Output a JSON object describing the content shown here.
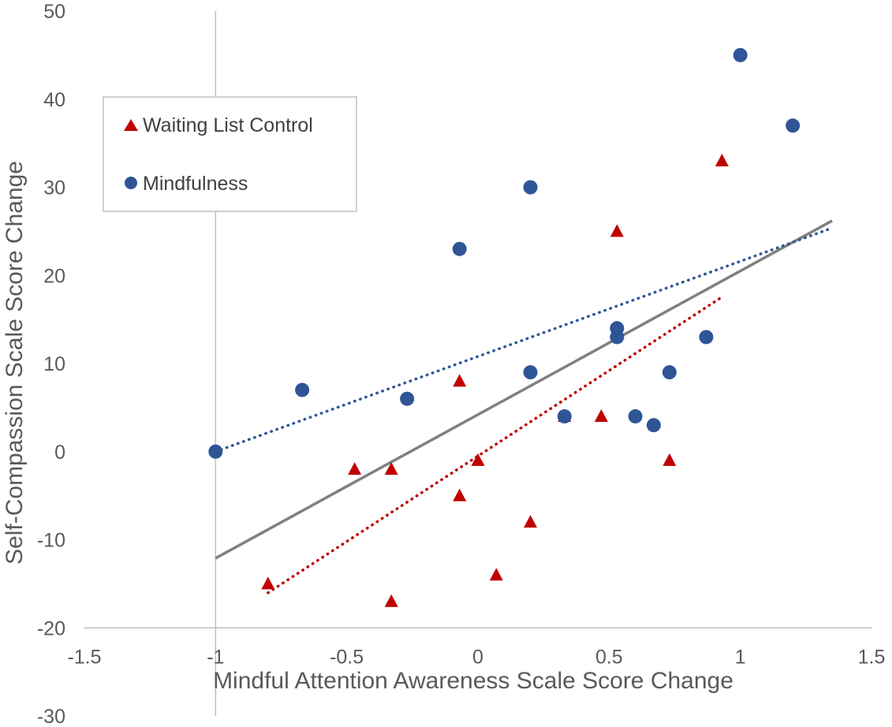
{
  "chart_data": {
    "type": "scatter",
    "title": "",
    "xlabel": "Mindful Attention Awareness Scale Score Change",
    "ylabel": "Self-Compassion Scale Score Change",
    "xlim": [
      -1.5,
      1.5
    ],
    "ylim": [
      -30,
      50
    ],
    "x_ticks": [
      -1.5,
      -1,
      -0.5,
      0,
      0.5,
      1,
      1.5
    ],
    "y_ticks": [
      -30,
      -20,
      -10,
      0,
      10,
      20,
      30,
      40,
      50
    ],
    "x_tick_labels": [
      "-1.5",
      "-1",
      "-0.5",
      "0",
      "0.5",
      "1",
      "1.5"
    ],
    "y_tick_labels": [
      "-30",
      "-20",
      "-10",
      "0",
      "10",
      "20",
      "30",
      "40",
      "50"
    ],
    "x_axis_at_y": -20,
    "grid": false,
    "legend_position": "top-left",
    "series": [
      {
        "name": "Waiting List Control",
        "marker": "triangle",
        "color": "#C00000",
        "points": [
          [
            -0.8,
            -15
          ],
          [
            -0.47,
            -2
          ],
          [
            -0.33,
            -2
          ],
          [
            -0.33,
            -17
          ],
          [
            -0.07,
            8
          ],
          [
            -0.07,
            -5
          ],
          [
            0,
            -1
          ],
          [
            0.07,
            -14
          ],
          [
            0.2,
            -8
          ],
          [
            0.33,
            4
          ],
          [
            0.47,
            4
          ],
          [
            0.53,
            25
          ],
          [
            0.73,
            -1
          ],
          [
            0.93,
            33
          ]
        ],
        "trendline": {
          "style": "dotted",
          "color": "#C00000",
          "x_range": [
            -0.8,
            0.93
          ],
          "slope": 19.4,
          "intercept": -0.5
        }
      },
      {
        "name": "Mindfulness",
        "marker": "circle",
        "color": "#2F5597",
        "points": [
          [
            -1,
            0
          ],
          [
            -0.67,
            7
          ],
          [
            -0.27,
            6
          ],
          [
            -0.07,
            23
          ],
          [
            0.2,
            30
          ],
          [
            0.2,
            9
          ],
          [
            0.33,
            4
          ],
          [
            0.53,
            14
          ],
          [
            0.53,
            13
          ],
          [
            0.6,
            4
          ],
          [
            0.67,
            3
          ],
          [
            0.73,
            9
          ],
          [
            0.87,
            13
          ],
          [
            1,
            45
          ],
          [
            1.2,
            37
          ]
        ],
        "trendline": {
          "style": "dotted",
          "color": "#2F5597",
          "x_range": [
            -1,
            1.35
          ],
          "slope": 10.8,
          "intercept": 10.8
        }
      }
    ],
    "overall_trendline": {
      "style": "solid",
      "color": "#808080",
      "x_range": [
        -1,
        1.35
      ],
      "slope": 16.3,
      "intercept": 4.2
    }
  }
}
